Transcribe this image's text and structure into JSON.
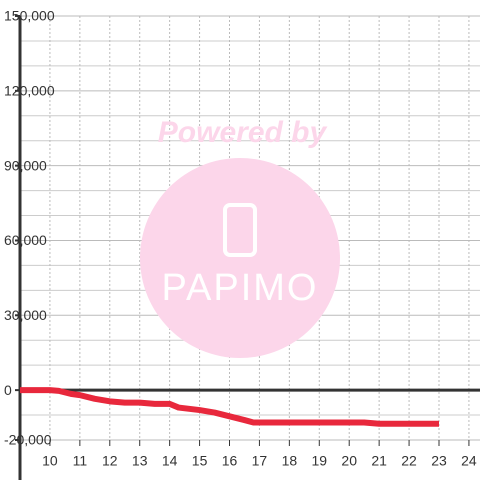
{
  "chart_data": {
    "type": "line",
    "x": [
      9,
      10,
      10.3,
      10.7,
      11,
      11.5,
      12,
      12.5,
      13,
      13.5,
      14,
      14.3,
      15,
      15.5,
      16,
      16.5,
      16.8,
      17,
      18,
      19,
      20,
      20.5,
      21,
      22,
      23
    ],
    "series": [
      {
        "color": "#e8283c",
        "values": [
          0,
          0,
          -300,
          -1500,
          -2000,
          -3500,
          -4500,
          -5000,
          -5000,
          -5500,
          -5500,
          -7000,
          -8000,
          -9000,
          -10500,
          -12000,
          -13000,
          -13000,
          -13000,
          -13000,
          -13000,
          -13000,
          -13500,
          -13500,
          -13500
        ]
      }
    ],
    "xlim": [
      9,
      24.37
    ],
    "xticks": [
      10,
      11,
      12,
      13,
      14,
      15,
      16,
      17,
      18,
      19,
      20,
      21,
      22,
      23,
      24
    ],
    "ylim": [
      -20000,
      150000
    ],
    "yticks": [
      {
        "value": -20000,
        "label": "-20,000"
      },
      0,
      {
        "value": 30000,
        "label": "30,000"
      },
      {
        "value": 60000,
        "label": "60,000"
      },
      {
        "value": 90000,
        "label": "90,000"
      },
      {
        "value": 120000,
        "label": "120,000"
      },
      {
        "value": 150000,
        "label": "150,000"
      }
    ],
    "yminor": [
      -10000,
      10000,
      20000,
      40000,
      50000,
      70000,
      80000,
      100000,
      110000,
      130000,
      140000
    ],
    "grid": true
  },
  "watermark": {
    "top": "Powered by",
    "logo": "PAPIMO"
  }
}
